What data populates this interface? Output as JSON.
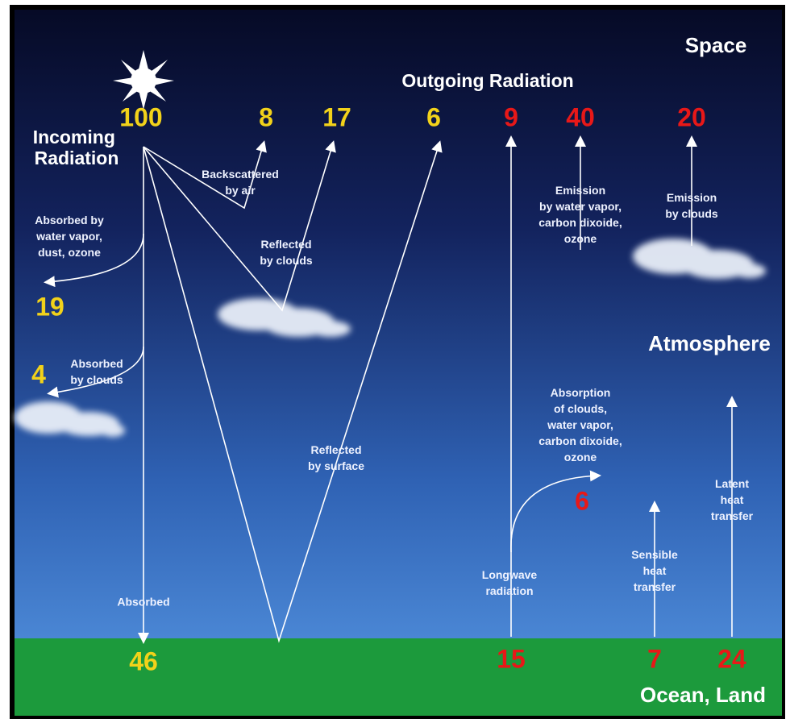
{
  "regions": {
    "space": "Space",
    "atmosphere": "Atmosphere",
    "ground": "Ocean, Land"
  },
  "headings": {
    "incoming": [
      "Incoming",
      "Radiation"
    ],
    "outgoing": "Outgoing Radiation"
  },
  "incoming": {
    "value": 100
  },
  "backscattered": {
    "value": 8,
    "label": [
      "Backscattered",
      "by air"
    ]
  },
  "reflected_clouds": {
    "value": 17,
    "label": [
      "Reflected",
      "by clouds"
    ]
  },
  "reflected_surface": {
    "value": 6,
    "label": [
      "Reflected",
      "by surface"
    ]
  },
  "absorbed_vapor": {
    "value": 19,
    "label": [
      "Absorbed by",
      "water vapor,",
      "dust, ozone"
    ]
  },
  "absorbed_clouds": {
    "value": 4,
    "label": [
      "Absorbed",
      "by clouds"
    ]
  },
  "absorbed_surface": {
    "value": 46,
    "label": "Absorbed"
  },
  "longwave": {
    "top_value": 9,
    "bottom_value": 15,
    "label": [
      "Longwave",
      "radiation"
    ]
  },
  "emission_gases": {
    "value": 40,
    "label": [
      "Emission",
      "by water vapor,",
      "carbon dixoide,",
      "ozone"
    ]
  },
  "emission_clouds": {
    "value": 20,
    "label": [
      "Emission",
      "by clouds"
    ]
  },
  "absorption": {
    "value": 6,
    "label": [
      "Absorption",
      "of clouds,",
      "water vapor,",
      "carbon dixoide,",
      "ozone"
    ]
  },
  "sensible": {
    "value": 7,
    "label": [
      "Sensible",
      "heat",
      "transfer"
    ]
  },
  "latent": {
    "value": 24,
    "label": [
      "Latent",
      "heat",
      "transfer"
    ]
  }
}
